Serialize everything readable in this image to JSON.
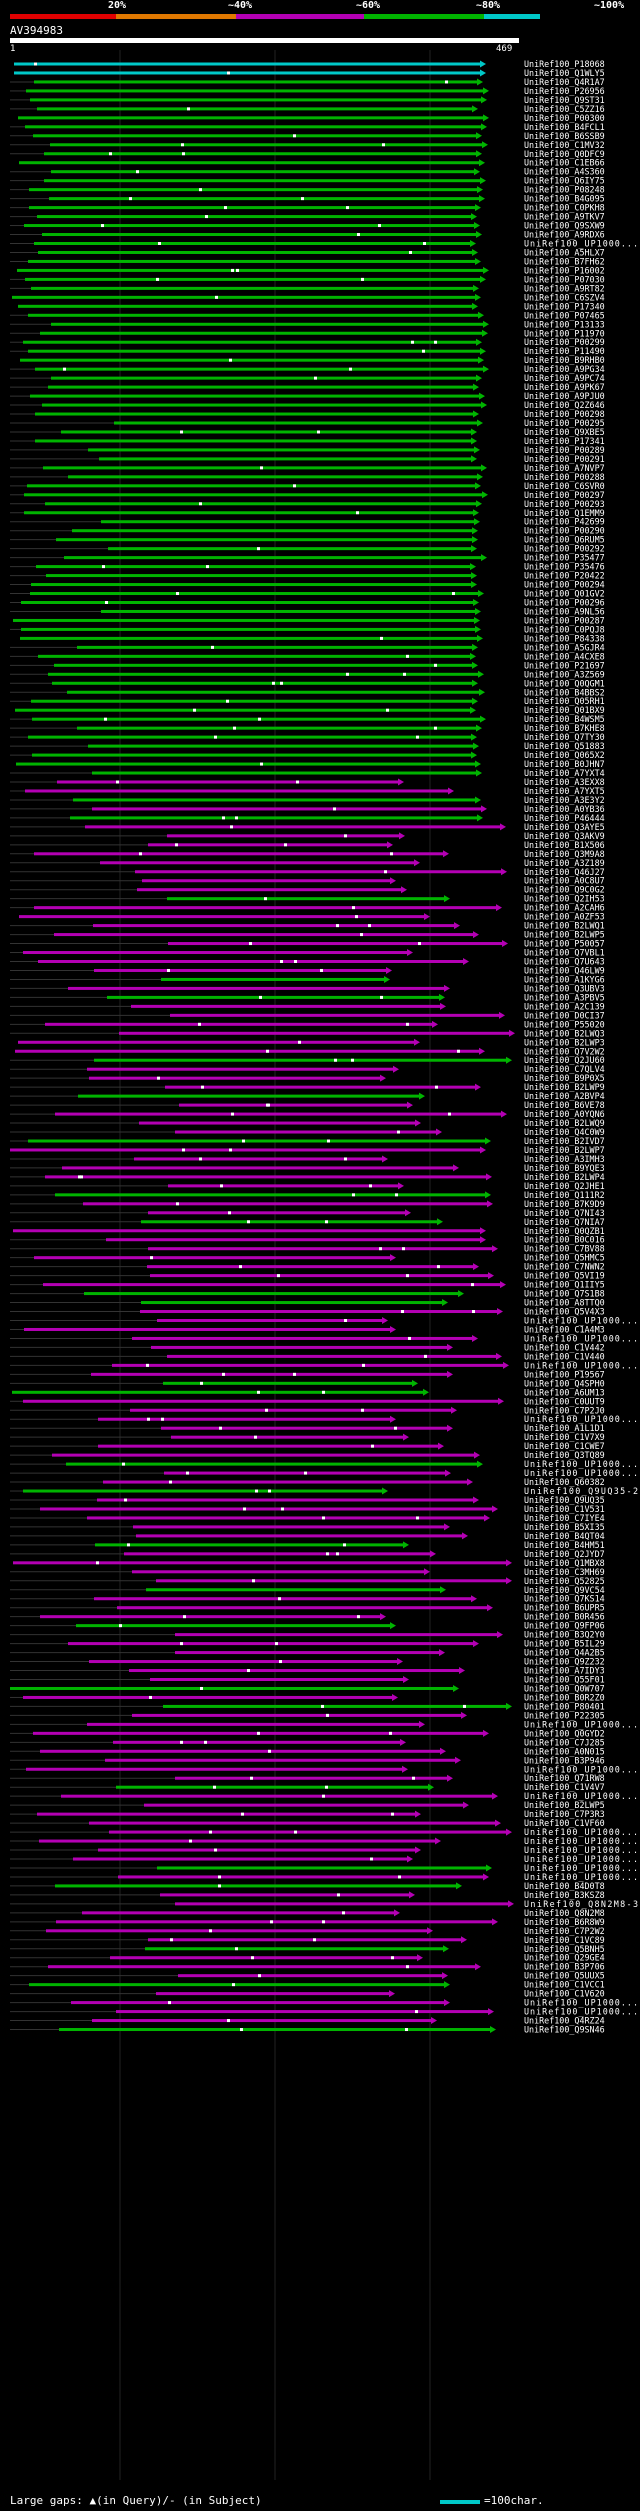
{
  "header": {
    "identity_scale": [
      "20%",
      "~40%",
      "~60%",
      "~80%",
      "~100%"
    ],
    "identity_colors": [
      "#e00000",
      "#e07800",
      "#b400b4",
      "#00b400",
      "#00c8c8"
    ],
    "query_id": "AV394983",
    "query_start": "1",
    "query_end": "469"
  },
  "legend": {
    "gaps": "Large gaps: ▲(in Query)/- (in Subject)",
    "scale": "=100char."
  },
  "hits": [
    "UniRef100_P18068",
    "UniRef100_Q1WLY5",
    "UniRef100_Q4R1A7",
    "UniRef100_P26956",
    "UniRef100_Q9ST31",
    "UniRef100_C5ZZ16",
    "UniRef100_P00300",
    "UniRef100_B4FCL1",
    "UniRef100_B6SSB9",
    "UniRef100_C1MV32",
    "UniRef100_Q0DFC9",
    "UniRef100_C1EB66",
    "UniRef100_A4S360",
    "UniRef100_Q6IY75",
    "UniRef100_P08248",
    "UniRef100_B4G095",
    "UniRef100_C0PKH8",
    "UniRef100_A9TKV7",
    "UniRef100_Q9SXW9",
    "UniRef100_A9RDX6",
    "UniRef100_UP1000...",
    "UniRef100_A5HLX7",
    "UniRef100_B7FH62",
    "UniRef100_P16002",
    "UniRef100_P07030",
    "UniRef100_A9RT82",
    "UniRef100_C6SZV4",
    "UniRef100_P17340",
    "UniRef100_P07465",
    "UniRef100_P13133",
    "UniRef100_P11970",
    "UniRef100_P00299",
    "UniRef100_P11490",
    "UniRef100_B9RHB0",
    "UniRef100_A9PG34",
    "UniRef100_A9PC74",
    "UniRef100_A9PK67",
    "UniRef100_A9PJU0",
    "UniRef100_Q2Z646",
    "UniRef100_P00298",
    "UniRef100_P00295",
    "UniRef100_Q9XBE5",
    "UniRef100_P17341",
    "UniRef100_P00289",
    "UniRef100_P00291",
    "UniRef100_A7NVP7",
    "UniRef100_P00288",
    "UniRef100_C6SVR0",
    "UniRef100_P00297",
    "UniRef100_P00293",
    "UniRef100_Q1EMM9",
    "UniRef100_P42699",
    "UniRef100_P00290",
    "UniRef100_Q6RUM5",
    "UniRef100_P00292",
    "UniRef100_P35477",
    "UniRef100_P35476",
    "UniRef100_P20422",
    "UniRef100_P00294",
    "UniRef100_Q01GV2",
    "UniRef100_P00296",
    "UniRef100_A9NL56",
    "UniRef100_P00287",
    "UniRef100_C0PQJ8",
    "UniRef100_P84338",
    "UniRef100_A5GJR4",
    "UniRef100_A4CXE8",
    "UniRef100_P21697",
    "UniRef100_A3Z569",
    "UniRef100_Q0QGM1",
    "UniRef100_B4BBS2",
    "UniRef100_Q05RH1",
    "UniRef100_Q01BX9",
    "UniRef100_B4WSM5",
    "UniRef100_B7KHE8",
    "UniRef100_Q7TY30",
    "UniRef100_Q51883",
    "UniRef100_Q065X2",
    "UniRef100_B0JHN7",
    "UniRef100_A7YXT4",
    "UniRef100_A3EXX8",
    "UniRef100_A7YXT5",
    "UniRef100_A3E3Y2",
    "UniRef100_A0YB36",
    "UniRef100_P46444",
    "UniRef100_Q3AYE5",
    "UniRef100_Q3AKV9",
    "UniRef100_B1X506",
    "UniRef100_Q3M9A8",
    "UniRef100_A3Z189",
    "UniRef100_Q46J27",
    "UniRef100_A0C8U7",
    "UniRef100_Q9C0G2",
    "UniRef100_Q2IH53",
    "UniRef100_A2CAH6",
    "UniRef100_A0ZF53",
    "UniRef100_B2LWQ1",
    "UniRef100_B2LWP5",
    "UniRef100_P50057",
    "UniRef100_Q7VBL1",
    "UniRef100_Q7U643",
    "UniRef100_Q46LW9",
    "UniRef100_A1KYG6",
    "UniRef100_Q3UBV3",
    "UniRef100_A3PBV5",
    "UniRef100_A2C139",
    "UniRef100_D0CI37",
    "UniRef100_P55020",
    "UniRef100_B2LWQ3",
    "UniRef100_B2LWP3",
    "UniRef100_Q7V2W2",
    "UniRef100_Q2JU60",
    "UniRef100_C7QLV4",
    "UniRef100_B9P0X5",
    "UniRef100_B2LWP9",
    "UniRef100_A2BVP4",
    "UniRef100_B6VE78",
    "UniRef100_A0YQN6",
    "UniRef100_B2LWQ9",
    "UniRef100_Q4C0W9",
    "UniRef100_B2IVD7",
    "UniRef100_B2LWP7",
    "UniRef100_A3IMH3",
    "UniRef100_B9YQE3",
    "UniRef100_B2LWP4",
    "UniRef100_Q2JHE1",
    "UniRef100_Q111R2",
    "UniRef100_B7K9D9",
    "UniRef100_Q7NI43",
    "UniRef100_Q7NIA7",
    "UniRef100_Q0QZB1",
    "UniRef100_B0C016",
    "UniRef100_C7BV88",
    "UniRef100_Q5HMC5",
    "UniRef100_C7NWN2",
    "UniRef100_Q5VI19",
    "UniRef100_Q1IIY5",
    "UniRef100_Q7S1B8",
    "UniRef100_A8TTQ0",
    "UniRef100_Q5V4X3",
    "UniRef100_UP1000...",
    "UniRef100_C1A4M3",
    "UniRef100_UP1000...",
    "UniRef100_C1V442",
    "UniRef100_C1V440",
    "UniRef100_UP1000...",
    "UniRef100_P19567",
    "UniRef100_Q4SPH0",
    "UniRef100_A6UM13",
    "UniRef100_C0UUT9",
    "UniRef100_C7P2J0",
    "UniRef100_UP1000...",
    "UniRef100_A1L1D1",
    "UniRef100_C1V7X9",
    "UniRef100_C1CWE7",
    "UniRef100_Q3TQ89",
    "UniRef100_UP1000...",
    "UniRef100_UP1000...",
    "UniRef100_Q60382",
    "UniRef100_Q9UQ35-2",
    "UniRef100_Q9UQ35",
    "UniRef100_C1V531",
    "UniRef100_C7IYE4",
    "UniRef100_B5XI35",
    "UniRef100_B4QT04",
    "UniRef100_B4HM51",
    "UniRef100_Q2JYD7",
    "UniRef100_Q1MBX8",
    "UniRef100_C3MH69",
    "UniRef100_Q52825",
    "UniRef100_Q9VC54",
    "UniRef100_Q7KS14",
    "UniRef100_B6UPR5",
    "UniRef100_B0R456",
    "UniRef100_Q9FP06",
    "UniRef100_B3Q2Y0",
    "UniRef100_B5IL29",
    "UniRef100_Q4A2B5",
    "UniRef100_Q9Z232",
    "UniRef100_A7IDY3",
    "UniRef100_Q55F01",
    "UniRef100_Q0W707",
    "UniRef100_B0R2Z0",
    "UniRef100_P80401",
    "UniRef100_P22305",
    "UniRef100_UP1000...",
    "UniRef100_Q0GYD2",
    "UniRef100_C7J285",
    "UniRef100_A0N015",
    "UniRef100_B3P946",
    "UniRef100_UP1000...",
    "UniRef100_Q71RW8",
    "UniRef100_C1V4V7",
    "UniRef100_UP1000...",
    "UniRef100_B2LWP5",
    "UniRef100_C7P3R3",
    "UniRef100_C1VF60",
    "UniRef100_UP1000...",
    "UniRef100_UP1000...",
    "UniRef100_UP1000...",
    "UniRef100_UP1000...",
    "UniRef100_UP1000...",
    "UniRef100_UP1000...",
    "UniRef100_B4D0T8",
    "UniRef100_B3KSZ8",
    "UniRef100_Q8N2M8-3",
    "UniRef100_Q8N2M8",
    "UniRef100_B6R8W9",
    "UniRef100_C7P2W2",
    "UniRef100_C1VC89",
    "UniRef100_Q5BNH5",
    "UniRef100_Q29GE4",
    "UniRef100_B3P706",
    "UniRef100_Q5UUX5",
    "UniRef100_C1VCC1",
    "UniRef100_C1V620",
    "UniRef100_UP1000...",
    "UniRef100_UP1000...",
    "UniRef100_Q4RZ24",
    "UniRef100_Q9SN46"
  ]
}
